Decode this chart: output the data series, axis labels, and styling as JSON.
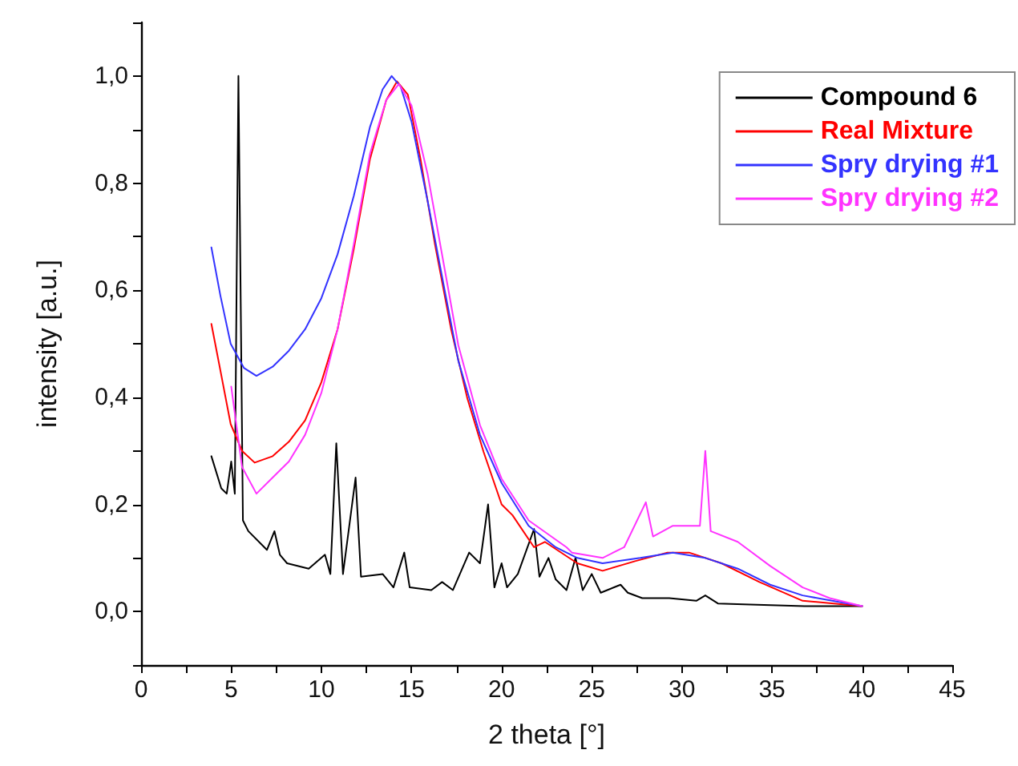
{
  "chart_data": {
    "type": "line",
    "xlabel": "2 theta [°]",
    "ylabel": "intensity [a.u.]",
    "xlim": [
      0,
      45
    ],
    "xticks": [
      0,
      {
        "value": 2.5,
        "label": null
      },
      5,
      {
        "value": 7.5,
        "label": null
      },
      10,
      {
        "value": 12.5,
        "label": null
      },
      15,
      {
        "value": 17.5,
        "label": null
      },
      20,
      {
        "value": 22.5,
        "label": null
      },
      25,
      {
        "value": 27.5,
        "label": null
      },
      30,
      {
        "value": 32.5,
        "label": null
      },
      35,
      {
        "value": 37.5,
        "label": null
      },
      40,
      {
        "value": 42.5,
        "label": null
      },
      45
    ],
    "ylim": [
      -0.1,
      1.1
    ],
    "yticks": [
      {
        "value": -0.1,
        "label": null
      },
      {
        "value": 0,
        "label": "0,0"
      },
      {
        "value": 0.1,
        "label": null
      },
      {
        "value": 0.2,
        "label": "0,2"
      },
      {
        "value": 0.3,
        "label": null
      },
      {
        "value": 0.4,
        "label": "0,4"
      },
      {
        "value": 0.5,
        "label": null
      },
      {
        "value": 0.6,
        "label": "0,6"
      },
      {
        "value": 0.7,
        "label": null
      },
      {
        "value": 0.8,
        "label": "0,8"
      },
      {
        "value": 0.9,
        "label": null
      },
      {
        "value": 1.0,
        "label": "1,0"
      },
      {
        "value": 1.1,
        "label": null
      }
    ],
    "grid": false,
    "legend": "top right",
    "marker": "none",
    "line_style": "solid",
    "series": [
      {
        "name": "Compound 6",
        "color": "#000000",
        "x": [
          3.9,
          4.45,
          4.75,
          5.0,
          5.2,
          5.4,
          5.65,
          5.95,
          6.98,
          7.4,
          7.7,
          8.1,
          9.3,
          10.2,
          10.5,
          10.83,
          11.2,
          11.9,
          12.2,
          13.4,
          14.0,
          14.6,
          14.9,
          16.1,
          16.7,
          17.3,
          18.2,
          18.8,
          19.25,
          19.6,
          20.0,
          20.3,
          20.9,
          21.8,
          22.1,
          22.6,
          23.0,
          23.6,
          24.1,
          24.5,
          25.0,
          25.5,
          26.6,
          27.0,
          27.8,
          29.3,
          30.8,
          31.3,
          32.0,
          33.8,
          36.8,
          40
        ],
        "values": [
          0.29,
          0.23,
          0.22,
          0.28,
          0.22,
          1.0,
          0.17,
          0.15,
          0.115,
          0.15,
          0.106,
          0.09,
          0.08,
          0.106,
          0.07,
          0.314,
          0.07,
          0.25,
          0.065,
          0.07,
          0.045,
          0.11,
          0.045,
          0.04,
          0.055,
          0.04,
          0.11,
          0.09,
          0.2,
          0.045,
          0.09,
          0.045,
          0.07,
          0.154,
          0.065,
          0.1,
          0.06,
          0.04,
          0.1,
          0.04,
          0.07,
          0.035,
          0.05,
          0.035,
          0.025,
          0.025,
          0.02,
          0.03,
          0.015,
          0.013,
          0.01,
          0.01
        ]
      },
      {
        "name": "Real Mixture",
        "color": "#ff0000",
        "x": [
          3.9,
          4.4,
          4.97,
          5.6,
          6.3,
          7.3,
          8.2,
          9.1,
          10.0,
          10.9,
          11.8,
          12.7,
          13.6,
          14.2,
          14.8,
          15.5,
          16.3,
          17.2,
          18.1,
          19.0,
          20.0,
          20.6,
          21.8,
          22.4,
          24.2,
          25.6,
          27.4,
          29.2,
          30.4,
          32.2,
          34.3,
          36.7,
          40
        ],
        "values": [
          0.537,
          0.45,
          0.35,
          0.3,
          0.278,
          0.29,
          0.317,
          0.357,
          0.428,
          0.527,
          0.677,
          0.845,
          0.955,
          0.99,
          0.965,
          0.845,
          0.686,
          0.527,
          0.398,
          0.298,
          0.2,
          0.18,
          0.12,
          0.13,
          0.09,
          0.076,
          0.094,
          0.11,
          0.11,
          0.09,
          0.055,
          0.02,
          0.01
        ]
      },
      {
        "name": "Spry drying #1",
        "color": "#3333ff",
        "x": [
          3.9,
          4.4,
          4.97,
          5.7,
          6.4,
          7.3,
          8.2,
          9.1,
          10.0,
          10.9,
          11.8,
          12.7,
          13.4,
          13.9,
          14.4,
          15.0,
          15.9,
          16.8,
          17.6,
          18.8,
          20.0,
          21.5,
          23.0,
          24.2,
          25.6,
          27.7,
          29.5,
          31.3,
          33.1,
          34.9,
          36.7,
          40
        ],
        "values": [
          0.68,
          0.59,
          0.5,
          0.455,
          0.44,
          0.457,
          0.487,
          0.527,
          0.585,
          0.667,
          0.776,
          0.905,
          0.975,
          1.0,
          0.98,
          0.915,
          0.766,
          0.607,
          0.468,
          0.33,
          0.24,
          0.16,
          0.12,
          0.1,
          0.09,
          0.1,
          0.11,
          0.1,
          0.08,
          0.05,
          0.03,
          0.01
        ]
      },
      {
        "name": "Spry drying #2",
        "color": "#ff33ff",
        "x": [
          5.0,
          5.6,
          6.4,
          7.3,
          8.2,
          9.1,
          10.0,
          10.9,
          11.8,
          12.7,
          13.6,
          14.3,
          15.0,
          15.9,
          16.8,
          17.6,
          18.8,
          20.0,
          21.5,
          23.6,
          23.9,
          25.6,
          26.8,
          28.0,
          28.4,
          29.5,
          31.0,
          31.3,
          31.6,
          33.1,
          34.9,
          36.7,
          38.2,
          40
        ],
        "values": [
          0.42,
          0.27,
          0.22,
          0.25,
          0.28,
          0.33,
          0.408,
          0.527,
          0.686,
          0.855,
          0.955,
          0.985,
          0.945,
          0.816,
          0.647,
          0.497,
          0.348,
          0.248,
          0.17,
          0.12,
          0.11,
          0.1,
          0.12,
          0.204,
          0.14,
          0.16,
          0.16,
          0.3,
          0.15,
          0.13,
          0.085,
          0.045,
          0.025,
          0.01
        ]
      }
    ]
  }
}
